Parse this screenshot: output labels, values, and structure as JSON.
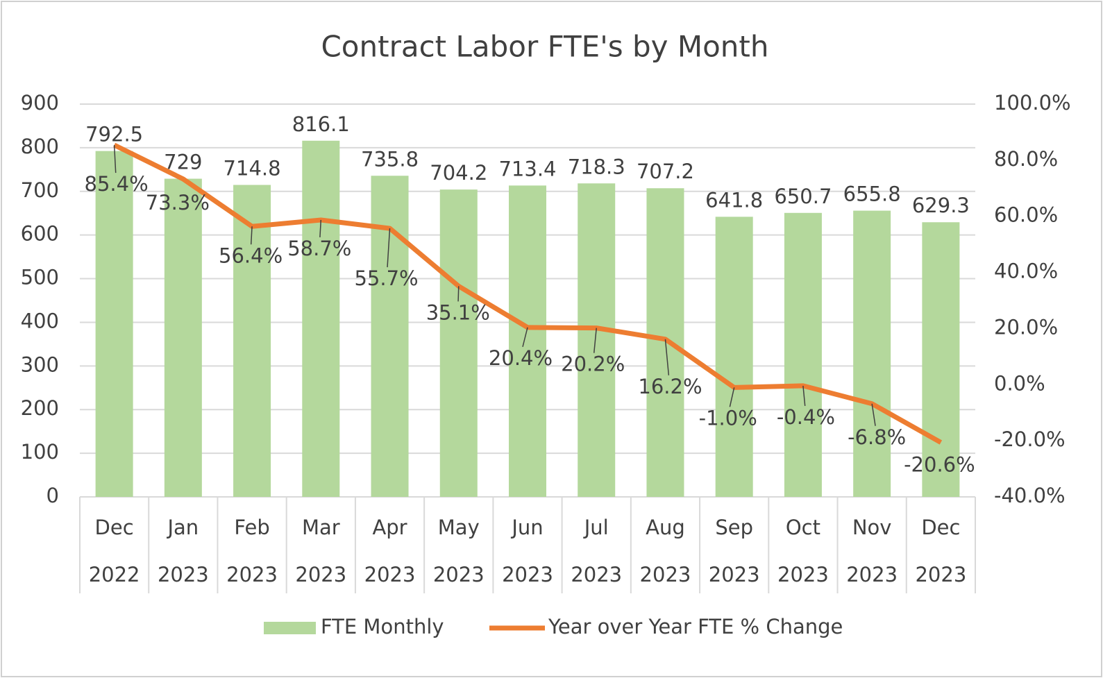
{
  "chart_data": {
    "type": "bar",
    "title": "Contract Labor FTE's by Month",
    "categories": [
      [
        "Dec",
        "2022"
      ],
      [
        "Jan",
        "2023"
      ],
      [
        "Feb",
        "2023"
      ],
      [
        "Mar",
        "2023"
      ],
      [
        "Apr",
        "2023"
      ],
      [
        "May",
        "2023"
      ],
      [
        "Jun",
        "2023"
      ],
      [
        "Jul",
        "2023"
      ],
      [
        "Aug",
        "2023"
      ],
      [
        "Sep",
        "2023"
      ],
      [
        "Oct",
        "2023"
      ],
      [
        "Nov",
        "2023"
      ],
      [
        "Dec",
        "2023"
      ]
    ],
    "series": [
      {
        "name": "FTE Monthly",
        "type": "bar",
        "color": "#b4d89c",
        "values": [
          792.5,
          729,
          714.8,
          816.1,
          735.8,
          704.2,
          713.4,
          718.3,
          707.2,
          641.8,
          650.7,
          655.8,
          629.3
        ]
      },
      {
        "name": "Year over Year FTE % Change",
        "type": "line",
        "axis": "y2",
        "color": "#ed7d31",
        "values": [
          85.4,
          73.3,
          56.4,
          58.7,
          55.7,
          35.1,
          20.4,
          20.2,
          16.2,
          -1.0,
          -0.4,
          -6.8,
          -20.6
        ],
        "value_labels": [
          "85.4%",
          "73.3%",
          "56.4%",
          "58.7%",
          "55.7%",
          "35.1%",
          "20.4%",
          "20.2%",
          "16.2%",
          "-1.0%",
          "-0.4%",
          "-6.8%",
          "-20.6%"
        ]
      }
    ],
    "ylim": [
      0,
      900
    ],
    "yticks": [
      0,
      100,
      200,
      300,
      400,
      500,
      600,
      700,
      800,
      900
    ],
    "y2lim": [
      -40,
      100
    ],
    "y2ticks": [
      {
        "value": -40,
        "label": "-40.0%"
      },
      {
        "value": -20,
        "label": "-20.0%"
      },
      {
        "value": 0,
        "label": "0.0%"
      },
      {
        "value": 20,
        "label": "20.0%"
      },
      {
        "value": 40,
        "label": "40.0%"
      },
      {
        "value": 60,
        "label": "60.0%"
      },
      {
        "value": 80,
        "label": "80.0%"
      },
      {
        "value": 100,
        "label": "100.0%"
      }
    ],
    "grid": true,
    "legend": "bottom"
  }
}
